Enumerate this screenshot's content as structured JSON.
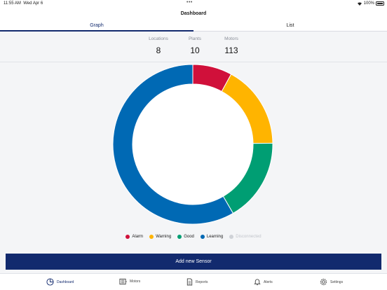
{
  "status_bar": {
    "time": "11:55 AM",
    "date": "Wed Apr 6",
    "battery": "100%"
  },
  "header": {
    "title": "Dashboard"
  },
  "tabs": [
    {
      "label": "Graph",
      "active": true
    },
    {
      "label": "List",
      "active": false
    }
  ],
  "stats": [
    {
      "label": "Locations",
      "value": "8"
    },
    {
      "label": "Plants",
      "value": "10"
    },
    {
      "label": "Motors",
      "value": "113"
    }
  ],
  "chart_data": {
    "type": "pie",
    "donut": true,
    "categories": [
      "Alarm",
      "Warning",
      "Good",
      "Learning",
      "Disconnected"
    ],
    "values": [
      9,
      19,
      19,
      66,
      0
    ],
    "colors": [
      "#d0103a",
      "#ffb400",
      "#009e73",
      "#0069b4",
      "#cfd2d7"
    ]
  },
  "legend": [
    {
      "label": "Alarm",
      "color": "#d0103a"
    },
    {
      "label": "Warning",
      "color": "#ffb400"
    },
    {
      "label": "Good",
      "color": "#009e73"
    },
    {
      "label": "Learning",
      "color": "#0069b4"
    },
    {
      "label": "Disconnected",
      "color": "#cfd2d7"
    }
  ],
  "actions": {
    "add_sensor": "Add new Sensor"
  },
  "bottom_nav": [
    {
      "label": "Dashboard",
      "icon": "pie-chart-icon",
      "active": true
    },
    {
      "label": "Motors",
      "icon": "motor-icon",
      "active": false
    },
    {
      "label": "Reports",
      "icon": "document-icon",
      "active": false
    },
    {
      "label": "Alerts",
      "icon": "bell-icon",
      "active": false
    },
    {
      "label": "Settings",
      "icon": "gear-icon",
      "active": false
    }
  ],
  "colors": {
    "primary": "#122a6e",
    "background": "#f4f5f7"
  }
}
